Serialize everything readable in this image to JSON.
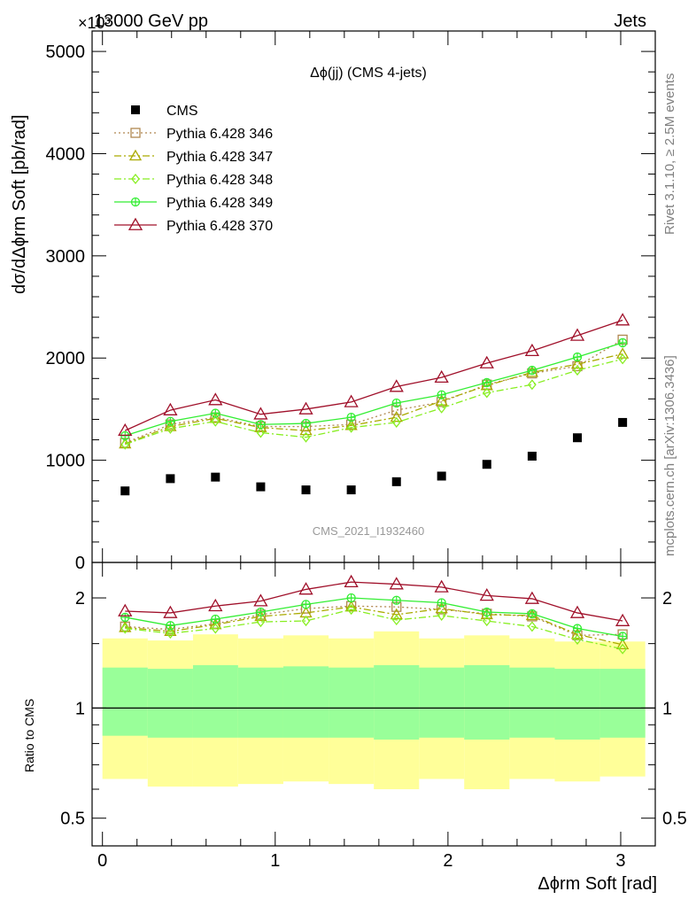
{
  "header": {
    "left_label": "13000 GeV pp",
    "right_label": "Jets",
    "exponent_label": "×10³"
  },
  "side_labels": {
    "rivet": "Rivet 3.1.10, ≥ 2.5M events",
    "mcplots": "mcplots.cern.ch [arXiv:1306.3436]"
  },
  "chart_data": [
    {
      "type": "line",
      "title": "Δϕ(jj) (CMS 4-jets)",
      "watermark": "CMS_2021_I1932460",
      "ylabel": "dσ/dΔϕrm Soft [pb/rad]",
      "ylim": [
        0,
        5200
      ],
      "yticks": [
        "0",
        "1000",
        "2000",
        "3000",
        "4000",
        "5000"
      ],
      "yticks_values": [
        0,
        1000,
        2000,
        3000,
        4000,
        5000
      ],
      "xlim": [
        -0.06,
        3.2
      ],
      "legend_position": "top-left",
      "x": [
        0.131,
        0.393,
        0.654,
        0.916,
        1.178,
        1.44,
        1.702,
        1.963,
        2.225,
        2.487,
        2.749,
        3.011
      ],
      "series": [
        {
          "name": "CMS",
          "style": "data",
          "color": "#000000",
          "values": [
            700,
            820,
            835,
            740,
            710,
            710,
            790,
            845,
            960,
            1040,
            1220,
            1370
          ]
        },
        {
          "name": "Pythia 6.428 346",
          "style": "dotted-square",
          "color": "#b08850",
          "values": [
            1170,
            1350,
            1420,
            1330,
            1330,
            1350,
            1490,
            1570,
            1740,
            1850,
            1920,
            2180
          ]
        },
        {
          "name": "Pythia 6.428 347",
          "style": "dashdot-triangle",
          "color": "#aaaa00",
          "values": [
            1160,
            1330,
            1410,
            1320,
            1290,
            1340,
            1420,
            1580,
            1730,
            1860,
            1940,
            2040
          ]
        },
        {
          "name": "Pythia 6.428 348",
          "style": "dashdot-diamond",
          "color": "#88ee22",
          "values": [
            1155,
            1310,
            1380,
            1270,
            1225,
            1320,
            1370,
            1510,
            1660,
            1740,
            1880,
            1990
          ]
        },
        {
          "name": "Pythia 6.428 349",
          "style": "solid-circleplus",
          "color": "#33ee33",
          "values": [
            1240,
            1380,
            1460,
            1350,
            1360,
            1420,
            1560,
            1640,
            1760,
            1880,
            2010,
            2150
          ]
        },
        {
          "name": "Pythia 6.428 370",
          "style": "solid-triangle",
          "color": "#a0102a",
          "values": [
            1290,
            1490,
            1590,
            1450,
            1500,
            1570,
            1720,
            1810,
            1950,
            2070,
            2220,
            2370
          ]
        }
      ]
    },
    {
      "type": "line",
      "ylabel": "Ratio to CMS",
      "xlabel": "Δϕrm Soft [rad]",
      "yscale": "log",
      "ylim": [
        0.42,
        2.5
      ],
      "yticks": [
        "0.5",
        "1",
        "2"
      ],
      "yticks_values": [
        0.5,
        1,
        2
      ],
      "xticks": [
        "0",
        "1",
        "2",
        "3"
      ],
      "xticks_values": [
        0,
        1,
        2,
        3
      ],
      "xlim": [
        -0.06,
        3.2
      ],
      "x": [
        0.131,
        0.393,
        0.654,
        0.916,
        1.178,
        1.44,
        1.702,
        1.963,
        2.225,
        2.487,
        2.749,
        3.011
      ],
      "bin_edges": [
        0.0,
        0.262,
        0.524,
        0.785,
        1.047,
        1.309,
        1.571,
        1.833,
        2.094,
        2.356,
        2.618,
        2.88,
        3.142
      ],
      "band_yellow": {
        "name": "",
        "color": "#ffff99",
        "upper": [
          1.55,
          1.53,
          1.59,
          1.55,
          1.58,
          1.55,
          1.62,
          1.55,
          1.58,
          1.55,
          1.52,
          1.52
        ],
        "lower": [
          0.64,
          0.61,
          0.61,
          0.62,
          0.63,
          0.62,
          0.6,
          0.64,
          0.6,
          0.64,
          0.63,
          0.65
        ]
      },
      "band_green": {
        "name": "",
        "color": "#99ff99",
        "upper": [
          1.29,
          1.28,
          1.31,
          1.29,
          1.3,
          1.29,
          1.31,
          1.29,
          1.31,
          1.29,
          1.28,
          1.28
        ],
        "lower": [
          0.84,
          0.83,
          0.83,
          0.83,
          0.83,
          0.83,
          0.82,
          0.83,
          0.82,
          0.83,
          0.82,
          0.83
        ]
      },
      "reference_line": 1,
      "series": [
        {
          "name": "Pythia 6.428 346",
          "style": "dotted-square",
          "color": "#b08850",
          "values": [
            1.67,
            1.64,
            1.7,
            1.8,
            1.87,
            1.9,
            1.89,
            1.86,
            1.81,
            1.78,
            1.58,
            1.59
          ]
        },
        {
          "name": "Pythia 6.428 347",
          "style": "dashdot-triangle",
          "color": "#aaaa00",
          "values": [
            1.66,
            1.62,
            1.69,
            1.78,
            1.82,
            1.89,
            1.8,
            1.87,
            1.8,
            1.79,
            1.59,
            1.49
          ]
        },
        {
          "name": "Pythia 6.428 348",
          "style": "dashdot-diamond",
          "color": "#88ee22",
          "values": [
            1.65,
            1.6,
            1.65,
            1.72,
            1.73,
            1.86,
            1.74,
            1.79,
            1.73,
            1.67,
            1.54,
            1.45
          ]
        },
        {
          "name": "Pythia 6.428 349",
          "style": "solid-circleplus",
          "color": "#33ee33",
          "values": [
            1.77,
            1.68,
            1.75,
            1.83,
            1.92,
            2.0,
            1.97,
            1.94,
            1.83,
            1.81,
            1.65,
            1.57
          ]
        },
        {
          "name": "Pythia 6.428 370",
          "style": "solid-triangle",
          "color": "#a0102a",
          "values": [
            1.84,
            1.82,
            1.9,
            1.96,
            2.11,
            2.21,
            2.18,
            2.14,
            2.03,
            1.99,
            1.82,
            1.73
          ]
        }
      ]
    }
  ]
}
